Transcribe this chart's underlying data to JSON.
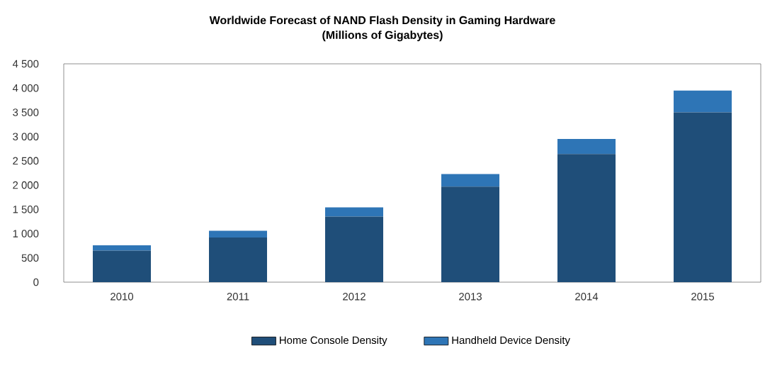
{
  "chart_data": {
    "type": "bar",
    "stacked": true,
    "title": "Worldwide Forecast of NAND Flash Density in Gaming Hardware\n(Millions of Gigabytes)",
    "categories": [
      "2010",
      "2011",
      "2012",
      "2013",
      "2014",
      "2015"
    ],
    "series": [
      {
        "name": "Home Console Density",
        "color": "#1f4e79",
        "values": [
          650,
          920,
          1350,
          1970,
          2640,
          3500
        ]
      },
      {
        "name": "Handheld Device Density",
        "color": "#2e75b6",
        "values": [
          110,
          140,
          190,
          260,
          310,
          450
        ]
      }
    ],
    "ylim": [
      0,
      4500
    ],
    "yticks": [
      0,
      500,
      {
        "value": 1000,
        "label": "1 000"
      },
      {
        "value": 1500,
        "label": "1 500"
      },
      {
        "value": 2000,
        "label": "2 000"
      },
      {
        "value": 2500,
        "label": "2 500"
      },
      {
        "value": 3000,
        "label": "3 000"
      },
      {
        "value": 3500,
        "label": "3 500"
      },
      {
        "value": 4000,
        "label": "4 000"
      },
      {
        "value": 4500,
        "label": "4 500"
      }
    ],
    "legend": "bottom",
    "grid": false
  }
}
